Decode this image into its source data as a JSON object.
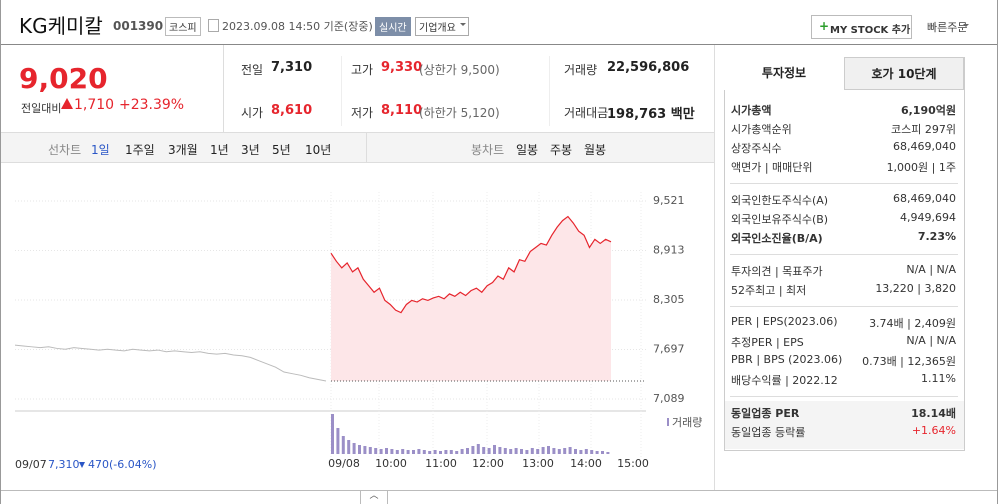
{
  "header": {
    "name": "KG케미칼",
    "code": "001390",
    "market": "코스피",
    "time": "2023.09.08 14:50 기준(장중)",
    "realtime": "실시간",
    "company_info": "기업개요",
    "my_stock": "MY STOCK 추가",
    "quick_order": "빠른주문"
  },
  "price": {
    "current": "9,020",
    "change_label": "전일대비",
    "change": "1,710",
    "change_rate": "+23.39%"
  },
  "summary": [
    [
      {
        "label": "전일",
        "value": "7,310"
      },
      {
        "label": "고가",
        "value": "9,330",
        "note": "(상한가 9,500)"
      },
      {
        "label": "거래량",
        "value": "22,596,806"
      }
    ],
    [
      {
        "label": "시가",
        "value": "8,610"
      },
      {
        "label": "저가",
        "value": "8,110",
        "note": "(하한가 5,120)"
      },
      {
        "label": "거래대금",
        "value": "198,763 백만"
      }
    ]
  ],
  "tabs": {
    "line_label": "선차트",
    "line": [
      "1일",
      "1주일",
      "3개월",
      "1년",
      "3년",
      "5년",
      "10년"
    ],
    "candle_label": "봉차트",
    "candle": [
      "일봉",
      "주봉",
      "월봉"
    ]
  },
  "chart": {
    "ylim": [
      7089,
      9521
    ],
    "yticks": [
      {
        "value": 9521,
        "label": "9,521"
      },
      {
        "value": 8913,
        "label": "8,913"
      },
      {
        "value": 8305,
        "label": "8,305"
      },
      {
        "value": 7697,
        "label": "7,697"
      },
      {
        "value": 7089,
        "label": "7,089"
      }
    ],
    "xticks": [
      "09/08",
      "10:00",
      "11:00",
      "12:00",
      "13:00",
      "14:00",
      "15:00"
    ],
    "base_line": 7310,
    "prev_day": {
      "date": "09/07",
      "close": "7,310",
      "change": "470",
      "rate": "(-6.04%)",
      "values": [
        7750,
        7740,
        7730,
        7720,
        7730,
        7710,
        7700,
        7720,
        7710,
        7700,
        7690,
        7700,
        7690,
        7680,
        7700,
        7690,
        7680,
        7690,
        7670,
        7680,
        7670,
        7660,
        7670,
        7650,
        7640,
        7650,
        7630,
        7620,
        7600,
        7560,
        7520,
        7480,
        7420,
        7400,
        7380,
        7350,
        7330,
        7310
      ]
    },
    "today": {
      "color": "#e6252d",
      "values": [
        8880,
        8780,
        8700,
        8760,
        8650,
        8700,
        8560,
        8480,
        8400,
        8450,
        8300,
        8250,
        8180,
        8150,
        8250,
        8300,
        8280,
        8320,
        8300,
        8330,
        8350,
        8320,
        8380,
        8350,
        8400,
        8360,
        8420,
        8450,
        8400,
        8480,
        8520,
        8600,
        8560,
        8700,
        8650,
        8800,
        8780,
        8900,
        8950,
        9000,
        8980,
        9100,
        9200,
        9280,
        9330,
        9250,
        9150,
        9100,
        8950,
        9050,
        9000,
        9050,
        9020
      ]
    },
    "volume_label": "거래량",
    "volume": [
      40,
      26,
      18,
      14,
      11,
      9,
      8,
      7,
      6,
      5,
      6,
      5,
      4,
      5,
      4,
      4,
      5,
      4,
      3,
      4,
      3,
      4,
      4,
      3,
      5,
      6,
      8,
      10,
      7,
      6,
      9,
      7,
      6,
      5,
      6,
      5,
      4,
      6,
      5,
      7,
      8,
      6,
      5,
      6,
      7,
      5,
      4,
      5,
      4,
      3,
      3,
      2
    ]
  },
  "info_panel": {
    "tabs": [
      "투자정보",
      "호가 10단계"
    ],
    "sections": [
      [
        {
          "label": "시가총액",
          "value": "6,190억원",
          "bold": true
        },
        {
          "label": "시가총액순위",
          "value": "코스피 297위"
        },
        {
          "label": "상장주식수",
          "value": "68,469,040"
        },
        {
          "label": "액면가 | 매매단위",
          "value": "1,000원 | 1주"
        }
      ],
      [
        {
          "label": "외국인한도주식수(A)",
          "value": "68,469,040"
        },
        {
          "label": "외국인보유주식수(B)",
          "value": "4,949,694"
        },
        {
          "label": "외국인소진율(B/A)",
          "value": "7.23%",
          "bold": true
        }
      ],
      [
        {
          "label": "투자의견 | 목표주가",
          "value": "N/A | N/A"
        },
        {
          "label": "52주최고 | 최저",
          "value": "13,220 | 3,820"
        }
      ],
      [
        {
          "label": "PER | EPS(2023.06)",
          "value": "3.74배 | 2,409원"
        },
        {
          "label": "추정PER | EPS",
          "value": "N/A | N/A"
        },
        {
          "label": "PBR | BPS (2023.06)",
          "value": "0.73배 | 12,365원"
        },
        {
          "label": "배당수익률 | 2022.12",
          "value": "1.11%"
        }
      ],
      [
        {
          "label": "동일업종 PER",
          "value": "18.14배",
          "bold": true
        },
        {
          "label": "동일업종 등락률",
          "value": "+1.64%",
          "red": true
        }
      ]
    ]
  }
}
